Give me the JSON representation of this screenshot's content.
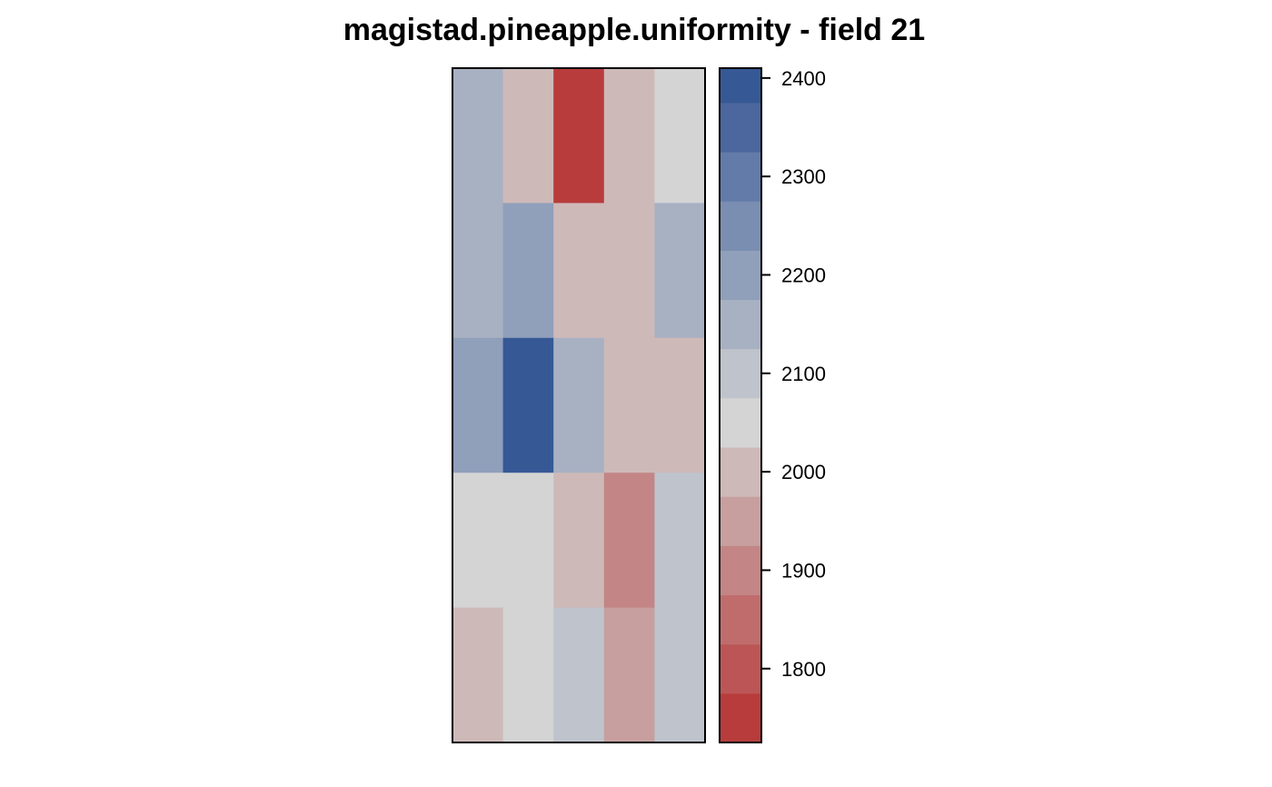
{
  "chart_data": {
    "type": "heatmap",
    "title": "magistad.pineapple.uniformity - field 21",
    "xlabel": "",
    "ylabel": "",
    "columns": 5,
    "rows": 5,
    "values_top_to_bottom": [
      [
        2130,
        2010,
        1740,
        2010,
        2050
      ],
      [
        2130,
        2220,
        2010,
        2010,
        2130
      ],
      [
        2220,
        2380,
        2130,
        2010,
        2010
      ],
      [
        2050,
        2050,
        2010,
        1880,
        2080
      ],
      [
        2010,
        2050,
        2080,
        1960,
        2080
      ]
    ],
    "colorbar": {
      "breaks": [
        1725,
        1775,
        1825,
        1875,
        1925,
        1975,
        2025,
        2075,
        2125,
        2175,
        2225,
        2275,
        2325,
        2375,
        2410
      ],
      "colors": [
        "#b83c3c",
        "#bc5656",
        "#c06c6c",
        "#c38585",
        "#c79f9f",
        "#ceb9b9",
        "#d4d4d4",
        "#bfc3cb",
        "#a8b1c2",
        "#909fba",
        "#7a8eb1",
        "#637ba8",
        "#4b679d",
        "#365995"
      ],
      "ticks": [
        1800,
        1900,
        2000,
        2100,
        2200,
        2300,
        2400
      ],
      "tick_labels": [
        "1800",
        "1900",
        "2000",
        "2100",
        "2200",
        "2300",
        "2400"
      ]
    },
    "grid": false,
    "legend": "right colorbar"
  }
}
